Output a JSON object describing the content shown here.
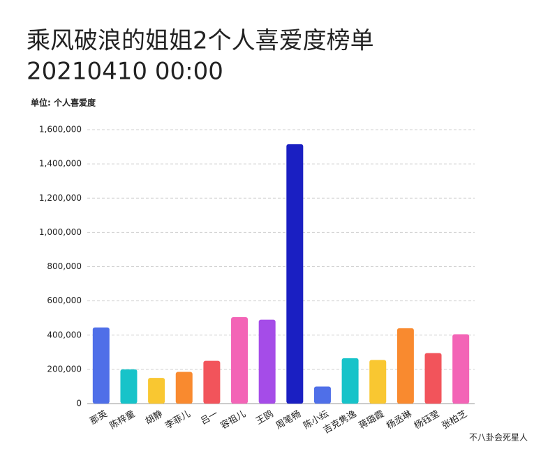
{
  "chart_data": {
    "type": "bar",
    "title": "乘风破浪的姐姐2个人喜爱度榜单",
    "subtitle": "20210410 00:00",
    "y_label": "单位: 个人喜爱度",
    "watermark": "不八卦会死星人",
    "categories": [
      "那英",
      "陈梓童",
      "胡静",
      "李菲儿",
      "吕一",
      "容祖儿",
      "王鸥",
      "周笔畅",
      "陈小纭",
      "吉克隽逸",
      "蒋璐霞",
      "杨丞琳",
      "杨钰莹",
      "张柏芝"
    ],
    "values": [
      445000,
      200000,
      150000,
      185000,
      250000,
      505000,
      490000,
      1515000,
      100000,
      265000,
      255000,
      440000,
      295000,
      405000
    ],
    "colors": [
      "#4f6fe8",
      "#17c3c9",
      "#f9c731",
      "#f98a2f",
      "#f2545b",
      "#f364b6",
      "#a54ce8",
      "#1a1fc2",
      "#4f6fe8",
      "#17c3c9",
      "#f9c731",
      "#f98a2f",
      "#f2545b",
      "#f364b6"
    ],
    "ylim": [
      0,
      1600000
    ],
    "yticks": [
      0,
      {
        "value": 200000,
        "label": "200,000"
      },
      {
        "value": 400000,
        "label": "400,000"
      },
      {
        "value": 600000,
        "label": "600,000"
      },
      {
        "value": 800000,
        "label": "800,000"
      },
      {
        "value": 1000000,
        "label": "1,000,000"
      },
      {
        "value": 1200000,
        "label": "1,200,000"
      },
      {
        "value": 1400000,
        "label": "1,400,000"
      },
      {
        "value": 1600000,
        "label": "1,600,000"
      }
    ],
    "grid": true
  }
}
